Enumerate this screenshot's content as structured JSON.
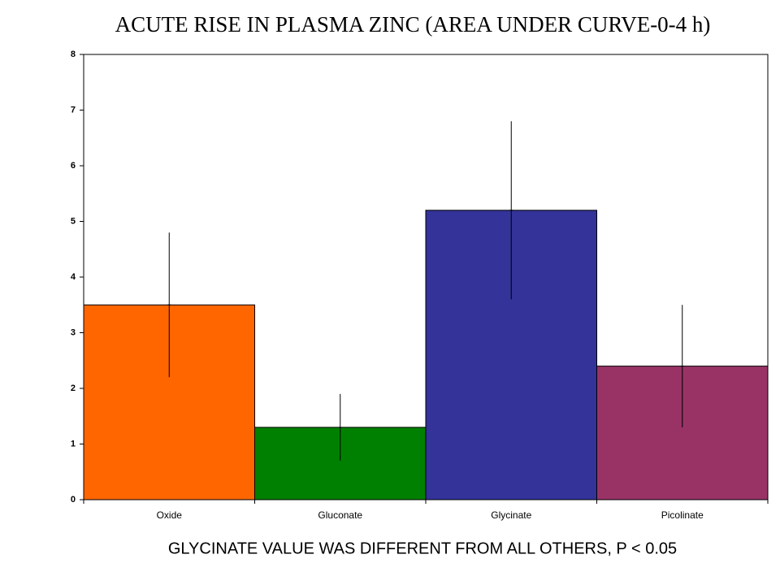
{
  "chart_data": {
    "type": "bar",
    "title": "ACUTE RISE IN PLASMA ZINC (AREA UNDER CURVE-0-4  h)",
    "annotation": "GLYCINATE  VALUE  WAS DIFFERENT FROM ALL OTHERS, P < 0.05",
    "categories": [
      "Oxide",
      "Gluconate",
      "Glycinate",
      "Picolinate"
    ],
    "values": [
      3.5,
      1.3,
      5.2,
      2.4
    ],
    "errors": [
      1.3,
      0.6,
      1.6,
      1.1
    ],
    "colors": [
      "#ff6600",
      "#008000",
      "#333399",
      "#993366"
    ],
    "ylim": [
      0,
      8
    ],
    "yticks": [
      0,
      1,
      2,
      3,
      4,
      5,
      6,
      7,
      8
    ]
  }
}
